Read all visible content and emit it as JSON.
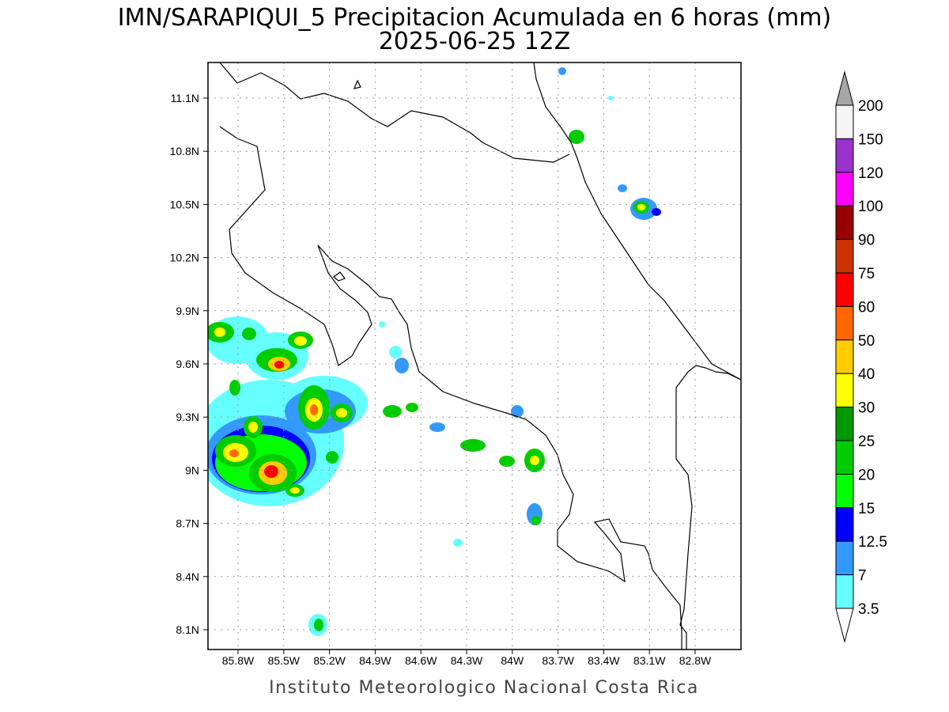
{
  "title": {
    "line1": "IMN/SARAPIQUI_5 Precipitacion Acumulada en 6 horas (mm)",
    "line2": "2025-06-25 12Z"
  },
  "footer": "Instituto Meteorologico Nacional Costa Rica",
  "axes": {
    "lat_ticks": [
      "11.1N",
      "10.8N",
      "10.5N",
      "10.2N",
      "9.9N",
      "9.6N",
      "9.3N",
      "9N",
      "8.7N",
      "8.4N",
      "8.1N"
    ],
    "lon_ticks": [
      "85.8W",
      "85.5W",
      "85.2W",
      "84.9W",
      "84.6W",
      "84.3W",
      "84W",
      "83.7W",
      "83.4W",
      "83.1W",
      "82.8W"
    ]
  },
  "colorbar": {
    "labels": [
      "200",
      "150",
      "120",
      "100",
      "90",
      "75",
      "60",
      "50",
      "40",
      "30",
      "25",
      "20",
      "15",
      "12.5",
      "7",
      "3.5"
    ],
    "colors": [
      "#f5f5f5",
      "#9932cc",
      "#ff00ff",
      "#990000",
      "#cc3300",
      "#ff0000",
      "#ff6600",
      "#ffcc00",
      "#ffff00",
      "#009900",
      "#00cc00",
      "#00ff00",
      "#0000ff",
      "#3399ff",
      "#66ffff"
    ],
    "over_color": "#a6a6a6",
    "under_color": "#ffffff"
  }
}
